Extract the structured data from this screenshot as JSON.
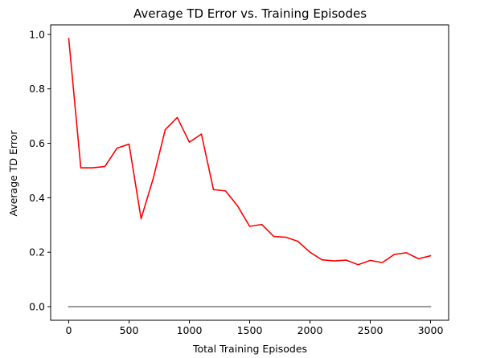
{
  "chart_data": {
    "type": "line",
    "title": "Average TD Error vs. Training Episodes",
    "xlabel": "Total Training Episodes",
    "ylabel": "Average TD Error",
    "xlim": [
      -150,
      3150
    ],
    "ylim": [
      -0.05,
      1.035
    ],
    "xticks": [
      0,
      500,
      1000,
      1500,
      2000,
      2500,
      3000
    ],
    "xtick_labels": [
      "0",
      "500",
      "1000",
      "1500",
      "2000",
      "2500",
      "3000"
    ],
    "yticks": [
      0.0,
      0.2,
      0.4,
      0.6,
      0.8,
      1.0
    ],
    "ytick_labels": [
      "0.0",
      "0.2",
      "0.4",
      "0.6",
      "0.8",
      "1.0"
    ],
    "grid": false,
    "series": [
      {
        "color": "#ff0000",
        "x": [
          0,
          100,
          200,
          300,
          400,
          500,
          600,
          700,
          800,
          900,
          1000,
          1100,
          1200,
          1300,
          1400,
          1500,
          1600,
          1700,
          1800,
          1900,
          2000,
          2100,
          2200,
          2300,
          2400,
          2500,
          2600,
          2700,
          2800,
          2900,
          3000
        ],
        "y": [
          0.985,
          0.51,
          0.51,
          0.515,
          0.582,
          0.597,
          0.323,
          0.47,
          0.65,
          0.695,
          0.604,
          0.634,
          0.43,
          0.425,
          0.37,
          0.295,
          0.302,
          0.258,
          0.255,
          0.24,
          0.2,
          0.172,
          0.168,
          0.171,
          0.154,
          0.17,
          0.162,
          0.192,
          0.198,
          0.176,
          0.187
        ]
      },
      {
        "color": "#808080",
        "x": [
          0,
          3000
        ],
        "y": [
          0.0,
          0.0
        ]
      }
    ]
  }
}
